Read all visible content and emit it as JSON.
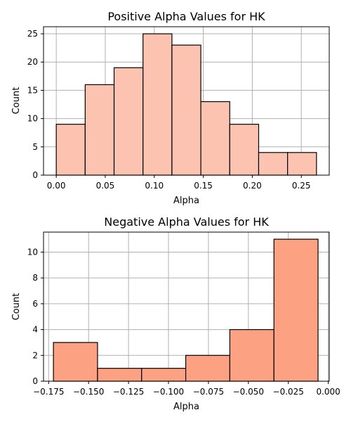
{
  "chart_data": [
    {
      "type": "bar",
      "title": "Positive Alpha Values for HK",
      "xlabel": "Alpha",
      "ylabel": "Count",
      "bin_edges": [
        0.0,
        0.0295,
        0.059,
        0.0885,
        0.118,
        0.1475,
        0.177,
        0.2065,
        0.236,
        0.2655
      ],
      "values": [
        9,
        16,
        19,
        25,
        23,
        13,
        9,
        4,
        4
      ],
      "xlim": [
        -0.013,
        0.2785
      ],
      "ylim": [
        0,
        26.25
      ],
      "xticks": [
        0.0,
        0.05,
        0.1,
        0.15,
        0.2,
        0.25
      ],
      "xtick_labels": [
        "0.00",
        "0.05",
        "0.10",
        "0.15",
        "0.20",
        "0.25"
      ],
      "yticks": [
        0,
        5,
        10,
        15,
        20,
        25
      ],
      "ytick_labels": [
        "0",
        "5",
        "10",
        "15",
        "20",
        "25"
      ],
      "grid": true,
      "bar_color": "#fcc4b0",
      "edge_color": "#000000"
    },
    {
      "type": "bar",
      "title": "Negative Alpha Values for HK",
      "xlabel": "Alpha",
      "ylabel": "Count",
      "bin_edges": [
        -0.172,
        -0.1444,
        -0.1168,
        -0.0892,
        -0.0616,
        -0.034,
        -0.0064
      ],
      "values": [
        3,
        1,
        1,
        2,
        4,
        11
      ],
      "xlim": [
        -0.1782,
        0.0006
      ],
      "ylim": [
        0,
        11.55
      ],
      "xticks": [
        -0.175,
        -0.15,
        -0.125,
        -0.1,
        -0.075,
        -0.05,
        -0.025,
        0.0
      ],
      "xtick_labels": [
        "−0.175",
        "−0.150",
        "−0.125",
        "−0.100",
        "−0.075",
        "−0.050",
        "−0.025",
        "0.000"
      ],
      "yticks": [
        0,
        2,
        4,
        6,
        8,
        10
      ],
      "ytick_labels": [
        "0",
        "2",
        "4",
        "6",
        "8",
        "10"
      ],
      "grid": true,
      "bar_color": "#fca283",
      "edge_color": "#000000"
    }
  ]
}
